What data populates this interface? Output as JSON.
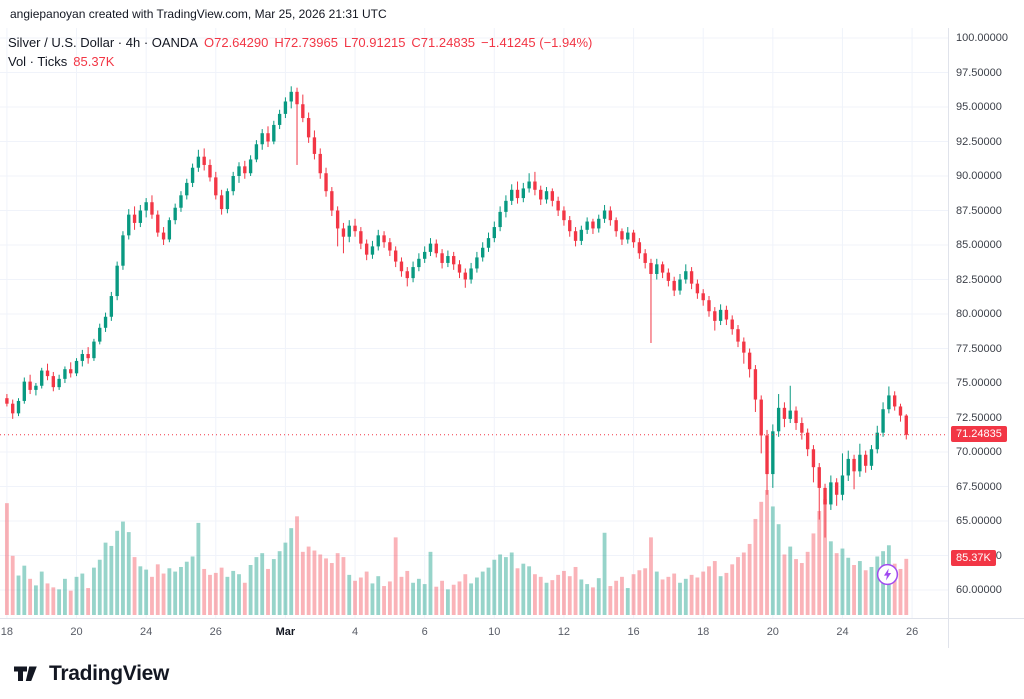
{
  "attribution": "angiepanoyan created with TradingView.com, Mar 25, 2026 21:31 UTC",
  "legend": {
    "title": "Silver / U.S. Dollar · 4h · OANDA",
    "ohlc": {
      "open": "O72.64290",
      "high": "H72.73965",
      "low": "L70.91215",
      "close": "C71.24835",
      "change": "−1.41245 (−1.94%)"
    },
    "volume_label": "Vol · Ticks",
    "volume_value": "85.37K"
  },
  "axis": {
    "price_badge": "71.24835",
    "volume_badge": "85.37K"
  },
  "footer": {
    "brand": "TradingView"
  },
  "colors": {
    "up": "#089981",
    "down": "#f23645",
    "vol_up": "rgba(8,153,129,0.42)",
    "vol_down": "rgba(242,54,69,0.38)",
    "grid": "#f0f3fa",
    "axis_text": "#3c4049",
    "badge_bg": "#f23645",
    "accent_purple": "#a14bf0"
  },
  "chart_data": {
    "type": "candlestick_with_volume",
    "symbol": "Silver / U.S. Dollar",
    "interval": "4h",
    "exchange": "OANDA",
    "title": "Silver / U.S. Dollar · 4h · OANDA",
    "legend_position": "top-left",
    "grid": true,
    "last_price": 71.24835,
    "last_volume_label": "85.37K",
    "ohlc_display": {
      "open": 72.6429,
      "high": 72.73965,
      "low": 70.91215,
      "close": 71.24835,
      "change": -1.41245,
      "change_pct": -1.94
    },
    "y_axis": {
      "min": 60,
      "max": 100,
      "step": 2.5,
      "values": [
        100,
        97.5,
        95,
        92.5,
        90,
        87.5,
        85,
        82.5,
        80,
        77.5,
        75,
        72.5,
        70,
        67.5,
        65,
        62.5,
        60
      ],
      "labels": [
        "100.00000",
        "97.50000",
        "95.00000",
        "92.50000",
        "90.00000",
        "87.50000",
        "85.00000",
        "82.50000",
        "80.00000",
        "77.50000",
        "75.00000",
        "72.50000",
        "70.00000",
        "67.50000",
        "65.00000",
        "62.50000",
        "60.00000"
      ]
    },
    "x_ticks": [
      {
        "index": 0,
        "label": "18",
        "month": false
      },
      {
        "index": 12,
        "label": "20",
        "month": false
      },
      {
        "index": 24,
        "label": "24",
        "month": false
      },
      {
        "index": 36,
        "label": "26",
        "month": false
      },
      {
        "index": 48,
        "label": "Mar",
        "month": true
      },
      {
        "index": 60,
        "label": "4",
        "month": false
      },
      {
        "index": 72,
        "label": "6",
        "month": false
      },
      {
        "index": 84,
        "label": "10",
        "month": false
      },
      {
        "index": 96,
        "label": "12",
        "month": false
      },
      {
        "index": 108,
        "label": "16",
        "month": false
      },
      {
        "index": 120,
        "label": "18",
        "month": false
      },
      {
        "index": 132,
        "label": "20",
        "month": false
      },
      {
        "index": 144,
        "label": "24",
        "month": false
      },
      {
        "index": 156,
        "label": "26",
        "month": false
      }
    ],
    "candles_format": [
      "open",
      "high",
      "low",
      "close",
      "volume_k"
    ],
    "candles": [
      [
        73.9,
        74.2,
        73.3,
        73.5,
        170
      ],
      [
        73.5,
        73.8,
        72.4,
        72.8,
        90
      ],
      [
        72.8,
        73.9,
        72.6,
        73.7,
        60
      ],
      [
        73.7,
        75.4,
        73.5,
        75.1,
        75
      ],
      [
        75.1,
        75.6,
        74.2,
        74.5,
        55
      ],
      [
        74.5,
        75.0,
        74.1,
        74.8,
        45
      ],
      [
        74.8,
        76.1,
        74.6,
        75.9,
        66
      ],
      [
        75.9,
        76.4,
        75.2,
        75.5,
        48
      ],
      [
        75.5,
        75.8,
        74.4,
        74.7,
        42
      ],
      [
        74.7,
        75.6,
        74.5,
        75.3,
        39
      ],
      [
        75.3,
        76.2,
        75.0,
        76.0,
        55
      ],
      [
        76.0,
        76.5,
        75.4,
        75.7,
        37
      ],
      [
        75.7,
        76.8,
        75.5,
        76.6,
        58
      ],
      [
        76.6,
        77.4,
        76.2,
        77.1,
        63
      ],
      [
        77.1,
        77.6,
        76.4,
        76.8,
        41
      ],
      [
        76.8,
        78.2,
        76.6,
        78.0,
        72
      ],
      [
        78.0,
        79.3,
        77.8,
        79.0,
        84
      ],
      [
        79.0,
        80.1,
        78.7,
        79.8,
        110
      ],
      [
        79.8,
        81.6,
        79.5,
        81.3,
        105
      ],
      [
        81.3,
        83.8,
        81.0,
        83.5,
        128
      ],
      [
        83.5,
        86.0,
        83.2,
        85.7,
        142
      ],
      [
        85.7,
        87.6,
        85.4,
        87.2,
        126
      ],
      [
        87.2,
        87.8,
        86.1,
        86.6,
        88
      ],
      [
        86.6,
        87.9,
        86.3,
        87.5,
        74
      ],
      [
        87.5,
        88.4,
        87.0,
        88.1,
        69
      ],
      [
        88.1,
        88.6,
        86.9,
        87.2,
        58
      ],
      [
        87.2,
        87.5,
        85.6,
        85.9,
        77
      ],
      [
        85.9,
        86.3,
        85.0,
        85.4,
        63
      ],
      [
        85.4,
        87.0,
        85.2,
        86.8,
        71
      ],
      [
        86.8,
        88.0,
        86.5,
        87.7,
        66
      ],
      [
        87.7,
        88.9,
        87.4,
        88.6,
        73
      ],
      [
        88.6,
        89.8,
        88.3,
        89.5,
        81
      ],
      [
        89.5,
        90.9,
        89.2,
        90.6,
        89
      ],
      [
        90.6,
        91.9,
        90.3,
        91.4,
        140
      ],
      [
        91.4,
        92.0,
        90.4,
        90.8,
        70
      ],
      [
        90.8,
        91.2,
        89.6,
        89.9,
        61
      ],
      [
        89.9,
        90.3,
        88.3,
        88.6,
        64
      ],
      [
        88.6,
        89.0,
        87.2,
        87.6,
        72
      ],
      [
        87.6,
        89.1,
        87.3,
        88.9,
        58
      ],
      [
        88.9,
        90.3,
        88.6,
        90.0,
        67
      ],
      [
        90.0,
        91.0,
        89.5,
        90.7,
        62
      ],
      [
        90.7,
        91.1,
        89.8,
        90.2,
        49
      ],
      [
        90.2,
        91.5,
        90.0,
        91.2,
        76
      ],
      [
        91.2,
        92.6,
        91.0,
        92.3,
        88
      ],
      [
        92.3,
        93.4,
        91.9,
        93.1,
        94
      ],
      [
        93.1,
        93.6,
        92.1,
        92.5,
        70
      ],
      [
        92.5,
        94.0,
        92.3,
        93.7,
        85
      ],
      [
        93.7,
        94.8,
        93.4,
        94.5,
        97
      ],
      [
        94.5,
        95.7,
        94.2,
        95.4,
        110
      ],
      [
        95.4,
        96.5,
        94.9,
        96.1,
        132
      ],
      [
        96.1,
        96.4,
        90.8,
        95.2,
        150
      ],
      [
        95.2,
        95.9,
        93.9,
        94.2,
        96
      ],
      [
        94.2,
        94.6,
        92.4,
        92.8,
        104
      ],
      [
        92.8,
        93.3,
        91.2,
        91.6,
        98
      ],
      [
        91.6,
        92.0,
        89.8,
        90.2,
        92
      ],
      [
        90.2,
        90.6,
        88.5,
        88.9,
        86
      ],
      [
        88.9,
        89.2,
        87.1,
        87.5,
        79
      ],
      [
        87.5,
        87.8,
        84.9,
        86.2,
        94
      ],
      [
        86.2,
        86.6,
        84.4,
        85.6,
        88
      ],
      [
        85.6,
        86.8,
        85.2,
        86.4,
        61
      ],
      [
        86.4,
        86.9,
        85.6,
        86.0,
        52
      ],
      [
        86.0,
        86.3,
        84.7,
        85.1,
        57
      ],
      [
        85.1,
        85.4,
        83.9,
        84.3,
        66
      ],
      [
        84.3,
        85.3,
        84.0,
        84.9,
        48
      ],
      [
        84.9,
        86.1,
        84.6,
        85.7,
        59
      ],
      [
        85.7,
        86.0,
        84.8,
        85.2,
        44
      ],
      [
        85.2,
        85.5,
        84.2,
        84.6,
        51
      ],
      [
        84.6,
        84.9,
        83.4,
        83.8,
        118
      ],
      [
        83.8,
        84.1,
        82.7,
        83.1,
        58
      ],
      [
        83.1,
        83.4,
        82.0,
        82.6,
        67
      ],
      [
        82.6,
        83.8,
        82.3,
        83.4,
        49
      ],
      [
        83.4,
        84.4,
        83.1,
        84.0,
        55
      ],
      [
        84.0,
        84.9,
        83.7,
        84.5,
        47
      ],
      [
        84.5,
        85.5,
        84.2,
        85.1,
        96
      ],
      [
        85.1,
        85.4,
        84.1,
        84.4,
        43
      ],
      [
        84.4,
        84.7,
        83.3,
        83.7,
        52
      ],
      [
        83.7,
        84.6,
        83.4,
        84.2,
        39
      ],
      [
        84.2,
        84.5,
        83.2,
        83.6,
        46
      ],
      [
        83.6,
        83.9,
        82.6,
        83.0,
        51
      ],
      [
        83.0,
        83.3,
        81.9,
        82.5,
        62
      ],
      [
        82.5,
        83.7,
        82.2,
        83.3,
        48
      ],
      [
        83.3,
        84.5,
        83.0,
        84.1,
        57
      ],
      [
        84.1,
        85.2,
        83.8,
        84.8,
        66
      ],
      [
        84.8,
        85.9,
        84.5,
        85.5,
        72
      ],
      [
        85.5,
        86.7,
        85.2,
        86.3,
        84
      ],
      [
        86.3,
        87.8,
        86.0,
        87.4,
        92
      ],
      [
        87.4,
        88.6,
        87.0,
        88.2,
        88
      ],
      [
        88.2,
        89.4,
        87.9,
        89.0,
        95
      ],
      [
        89.0,
        89.6,
        88.0,
        88.4,
        71
      ],
      [
        88.4,
        89.5,
        88.1,
        89.1,
        78
      ],
      [
        89.1,
        90.2,
        88.8,
        89.6,
        74
      ],
      [
        89.6,
        90.3,
        88.6,
        89.0,
        62
      ],
      [
        89.0,
        89.3,
        87.9,
        88.3,
        58
      ],
      [
        88.3,
        89.2,
        88.0,
        88.9,
        49
      ],
      [
        88.9,
        89.1,
        87.8,
        88.2,
        53
      ],
      [
        88.2,
        88.5,
        87.1,
        87.5,
        61
      ],
      [
        87.5,
        87.8,
        86.4,
        86.8,
        67
      ],
      [
        86.8,
        87.1,
        85.6,
        86.0,
        59
      ],
      [
        86.0,
        86.3,
        84.9,
        85.3,
        73
      ],
      [
        85.3,
        86.4,
        85.0,
        86.1,
        54
      ],
      [
        86.1,
        87.0,
        85.8,
        86.7,
        47
      ],
      [
        86.7,
        86.9,
        85.8,
        86.2,
        42
      ],
      [
        86.2,
        87.2,
        85.9,
        86.9,
        56
      ],
      [
        86.9,
        87.9,
        86.6,
        87.5,
        125
      ],
      [
        87.5,
        87.8,
        86.4,
        86.8,
        44
      ],
      [
        86.8,
        87.0,
        85.6,
        86.0,
        52
      ],
      [
        86.0,
        86.2,
        85.0,
        85.4,
        58
      ],
      [
        85.4,
        86.3,
        85.1,
        85.9,
        41
      ],
      [
        85.9,
        86.1,
        84.8,
        85.2,
        62
      ],
      [
        85.2,
        85.5,
        84.0,
        84.4,
        68
      ],
      [
        84.4,
        84.7,
        83.3,
        83.7,
        71
      ],
      [
        83.7,
        84.0,
        77.9,
        82.9,
        118
      ],
      [
        82.9,
        84.0,
        82.5,
        83.6,
        66
      ],
      [
        83.6,
        83.8,
        82.6,
        83.0,
        54
      ],
      [
        83.0,
        83.3,
        82.0,
        82.4,
        58
      ],
      [
        82.4,
        82.7,
        81.3,
        81.7,
        63
      ],
      [
        81.7,
        82.9,
        81.4,
        82.5,
        49
      ],
      [
        82.5,
        83.6,
        82.2,
        83.1,
        55
      ],
      [
        83.1,
        83.4,
        81.8,
        82.2,
        61
      ],
      [
        82.2,
        82.5,
        81.1,
        81.5,
        57
      ],
      [
        81.5,
        81.8,
        80.6,
        81.0,
        66
      ],
      [
        81.0,
        81.3,
        79.8,
        80.2,
        74
      ],
      [
        80.2,
        80.5,
        78.8,
        79.5,
        82
      ],
      [
        79.5,
        80.7,
        79.2,
        80.3,
        59
      ],
      [
        80.3,
        80.6,
        79.2,
        79.6,
        64
      ],
      [
        79.6,
        79.9,
        78.5,
        78.9,
        77
      ],
      [
        78.9,
        79.2,
        77.6,
        78.0,
        88
      ],
      [
        78.0,
        78.3,
        76.4,
        77.2,
        95
      ],
      [
        77.2,
        77.5,
        75.4,
        76.0,
        108
      ],
      [
        76.0,
        76.3,
        72.9,
        73.8,
        146
      ],
      [
        73.8,
        74.1,
        69.9,
        71.2,
        172
      ],
      [
        71.2,
        71.6,
        66.9,
        68.4,
        190
      ],
      [
        68.4,
        72.0,
        67.4,
        71.5,
        165
      ],
      [
        71.5,
        74.2,
        71.1,
        73.2,
        138
      ],
      [
        73.2,
        73.6,
        71.8,
        72.4,
        92
      ],
      [
        72.4,
        74.8,
        72.1,
        73.0,
        104
      ],
      [
        73.0,
        73.3,
        71.6,
        72.1,
        85
      ],
      [
        72.1,
        72.5,
        70.9,
        71.4,
        79
      ],
      [
        71.4,
        71.7,
        69.7,
        70.2,
        96
      ],
      [
        70.2,
        70.5,
        67.8,
        68.9,
        124
      ],
      [
        68.9,
        69.2,
        65.1,
        67.4,
        158
      ],
      [
        67.4,
        67.7,
        63.8,
        66.2,
        176
      ],
      [
        66.2,
        68.3,
        65.8,
        67.8,
        112
      ],
      [
        67.8,
        68.1,
        66.1,
        66.9,
        94
      ],
      [
        66.9,
        69.9,
        66.5,
        68.3,
        101
      ],
      [
        68.3,
        70.1,
        67.9,
        69.5,
        87
      ],
      [
        69.5,
        69.8,
        67.3,
        68.6,
        76
      ],
      [
        68.6,
        70.6,
        68.2,
        69.8,
        82
      ],
      [
        69.8,
        70.1,
        68.5,
        69.0,
        68
      ],
      [
        69.0,
        70.5,
        68.7,
        70.2,
        73
      ],
      [
        70.2,
        71.9,
        69.9,
        71.4,
        89
      ],
      [
        71.4,
        73.6,
        71.1,
        73.1,
        97
      ],
      [
        73.1,
        74.75,
        72.8,
        74.1,
        106
      ],
      [
        74.1,
        74.4,
        73.0,
        73.3,
        78
      ],
      [
        73.3,
        73.5,
        72.2,
        72.64,
        70
      ],
      [
        72.64,
        72.74,
        70.91,
        71.24835,
        85.37
      ]
    ]
  }
}
